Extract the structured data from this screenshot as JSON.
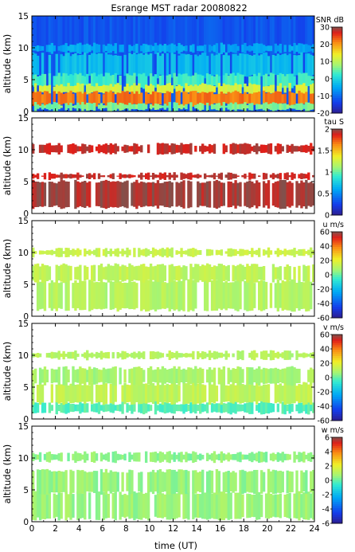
{
  "chart_data": {
    "title": "Esrange MST radar 20080822",
    "xlabel": "time (UT)",
    "x_ticks": [
      "0",
      "2",
      "4",
      "6",
      "8",
      "10",
      "12",
      "14",
      "16",
      "18",
      "20",
      "22",
      "24"
    ],
    "xlim": [
      0,
      24
    ],
    "panels": [
      {
        "type": "heatmap",
        "ylabel": "altitude (km)",
        "ylim": [
          0,
          15
        ],
        "y_ticks": [
          "0",
          "5",
          "10",
          "15"
        ],
        "colorbar_label": "SNR dB",
        "colorbar_ticks": [
          "30",
          "20",
          "10",
          "0",
          "-10",
          "-20"
        ],
        "colorbar_range": [
          -20,
          30
        ],
        "layers": [
          {
            "alt_min": 0,
            "alt_max": 15,
            "value": -12
          },
          {
            "alt_min": 9.3,
            "alt_max": 10.5,
            "value": -5
          },
          {
            "alt_min": 5.5,
            "alt_max": 9.0,
            "value": -3
          },
          {
            "alt_min": 3.8,
            "alt_max": 5.8,
            "value": 3
          },
          {
            "alt_min": 2.8,
            "alt_max": 4.2,
            "value": 12
          },
          {
            "alt_min": 1.0,
            "alt_max": 3.0,
            "value": 22
          },
          {
            "alt_min": 0.3,
            "alt_max": 1.2,
            "value": 6
          }
        ]
      },
      {
        "type": "heatmap",
        "ylabel": "altitude (km)",
        "ylim": [
          0,
          15
        ],
        "y_ticks": [
          "0",
          "5",
          "10",
          "15"
        ],
        "colorbar_label": "tau S",
        "colorbar_ticks": [
          "2",
          "1.5",
          "1",
          "0.5",
          "0"
        ],
        "colorbar_range": [
          0,
          2
        ],
        "layers": [
          {
            "alt_min": 1.0,
            "alt_max": 5.0,
            "value": 1.95
          },
          {
            "alt_min": 5.5,
            "alt_max": 6.2,
            "value": 1.9
          },
          {
            "alt_min": 9.5,
            "alt_max": 10.8,
            "value": 1.9
          }
        ]
      },
      {
        "type": "heatmap",
        "ylabel": "altitude (km)",
        "ylim": [
          0,
          15
        ],
        "y_ticks": [
          "0",
          "5",
          "10",
          "15"
        ],
        "colorbar_label": "u m/s",
        "colorbar_ticks": [
          "60",
          "40",
          "20",
          "0",
          "-20",
          "-40",
          "-60"
        ],
        "colorbar_range": [
          -60,
          60
        ],
        "layers": [
          {
            "alt_min": 1.0,
            "alt_max": 5.5,
            "value": 10
          },
          {
            "alt_min": 5.5,
            "alt_max": 8.0,
            "value": 12
          },
          {
            "alt_min": 9.5,
            "alt_max": 10.5,
            "value": 14
          }
        ]
      },
      {
        "type": "heatmap",
        "ylabel": "altitude (km)",
        "ylim": [
          0,
          15
        ],
        "y_ticks": [
          "0",
          "5",
          "10",
          "15"
        ],
        "colorbar_label": "v m/s",
        "colorbar_ticks": [
          "60",
          "40",
          "20",
          "0",
          "-20",
          "-40",
          "-60"
        ],
        "colorbar_range": [
          -60,
          60
        ],
        "layers": [
          {
            "alt_min": 1.0,
            "alt_max": 2.5,
            "value": -2
          },
          {
            "alt_min": 2.5,
            "alt_max": 5.5,
            "value": 12
          },
          {
            "alt_min": 5.5,
            "alt_max": 8.0,
            "value": 8
          },
          {
            "alt_min": 9.5,
            "alt_max": 10.5,
            "value": 10
          }
        ]
      },
      {
        "type": "heatmap",
        "ylabel": "altitude (km)",
        "ylim": [
          0,
          15
        ],
        "y_ticks": [
          "0",
          "5",
          "10",
          "15"
        ],
        "colorbar_label": "w m/s",
        "colorbar_ticks": [
          "6",
          "4",
          "2",
          "0",
          "-2",
          "-4",
          "-6"
        ],
        "colorbar_range": [
          -6,
          6
        ],
        "layers": [
          {
            "alt_min": 0.5,
            "alt_max": 4.5,
            "value": 0.6
          },
          {
            "alt_min": 4.5,
            "alt_max": 8.0,
            "value": 0.5
          },
          {
            "alt_min": 9.5,
            "alt_max": 10.8,
            "value": 0.4
          }
        ]
      }
    ]
  }
}
